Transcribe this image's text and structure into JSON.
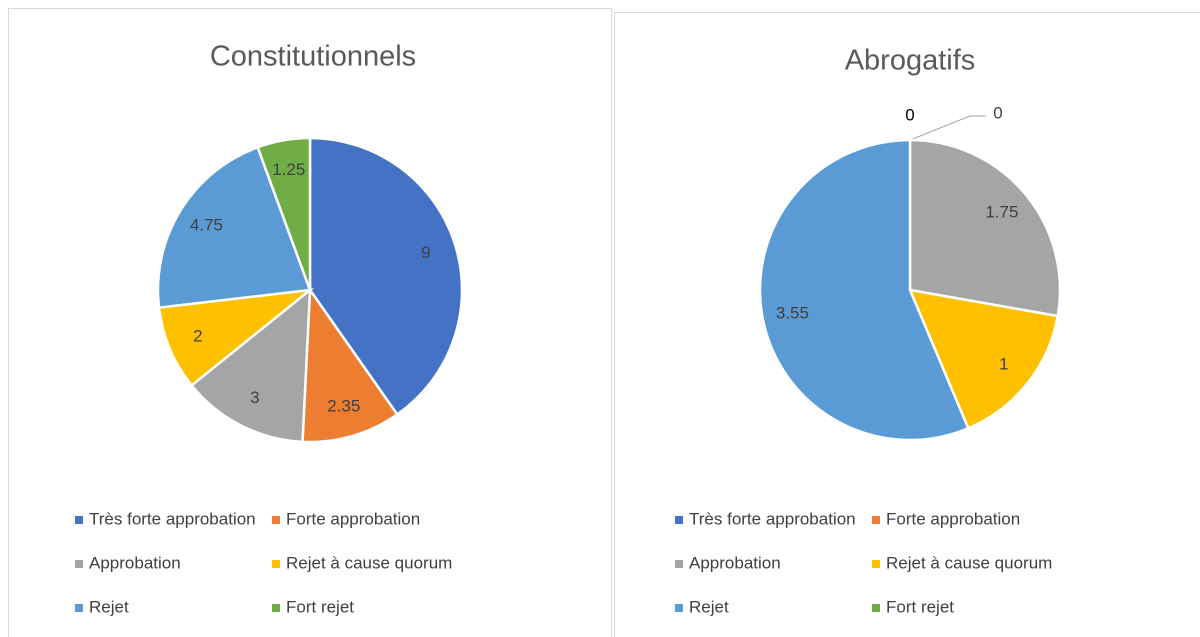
{
  "chart_data": [
    {
      "type": "pie",
      "title": "Constitutionnels",
      "categories": [
        "Très forte approbation",
        "Forte approbation",
        "Approbation",
        "Rejet à cause quorum",
        "Rejet",
        "Fort rejet"
      ],
      "values": [
        9,
        2.35,
        3,
        2,
        4.75,
        1.25
      ],
      "colors": [
        "#4472c4",
        "#ed7d31",
        "#a5a5a5",
        "#ffc000",
        "#5b9bd5",
        "#70ad47"
      ]
    },
    {
      "type": "pie",
      "title": "Abrogatifs",
      "categories": [
        "Très forte approbation",
        "Forte approbation",
        "Approbation",
        "Rejet à cause quorum",
        "Rejet",
        "Fort rejet"
      ],
      "values": [
        0,
        0,
        1.75,
        1,
        3.55,
        null
      ],
      "colors": [
        "#4472c4",
        "#ed7d31",
        "#a5a5a5",
        "#ffc000",
        "#5b9bd5",
        "#70ad47"
      ]
    }
  ]
}
